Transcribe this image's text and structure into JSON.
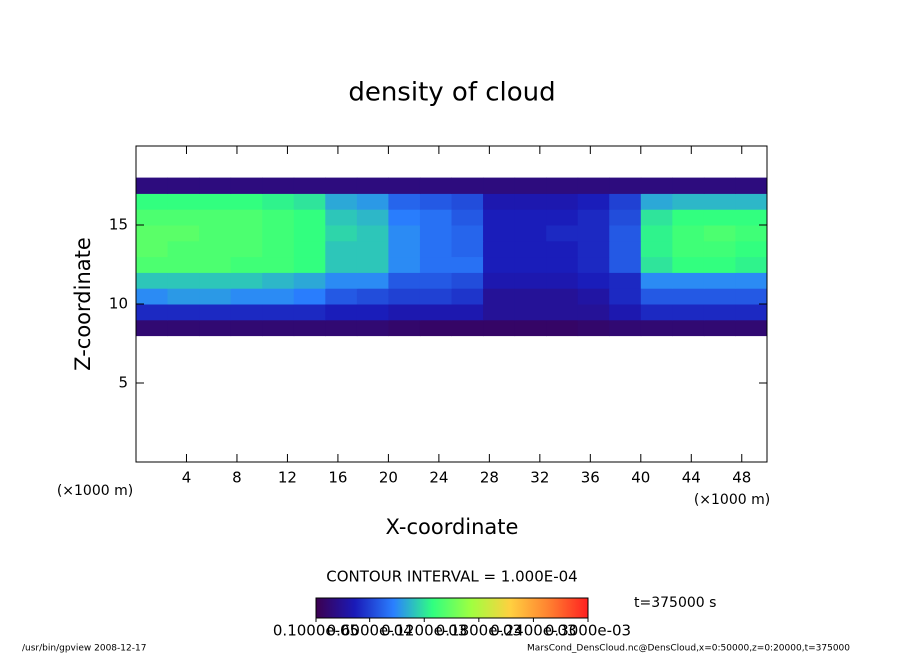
{
  "chart_data": {
    "type": "heatmap",
    "title": "density of cloud",
    "xlabel": "X-coordinate",
    "ylabel": "Z-coordinate",
    "xunit": "(×1000 m)",
    "xlim": [
      0,
      50
    ],
    "ylim": [
      0,
      20
    ],
    "xticks": [
      4,
      8,
      12,
      16,
      20,
      24,
      28,
      32,
      36,
      40,
      44,
      48
    ],
    "yticks": [
      5,
      10,
      15
    ],
    "xbins": [
      0,
      2.5,
      5,
      7.5,
      10,
      12.5,
      15,
      17.5,
      20,
      22.5,
      25,
      27.5,
      30,
      32.5,
      35,
      37.5,
      40,
      42.5,
      45,
      47.5,
      50
    ],
    "zbins": [
      8,
      9,
      10,
      11,
      12,
      13,
      14,
      15,
      16,
      17,
      18
    ],
    "values": [
      [
        1.5e-05,
        1.5e-05,
        1.5e-05,
        1.5e-05,
        1.5e-05,
        1.5e-05,
        1.5e-05,
        1.5e-05,
        1.2e-05,
        1e-05,
        1e-05,
        1e-05,
        1e-05,
        1e-05,
        1.2e-05,
        1.5e-05,
        1.5e-05,
        1.5e-05,
        1.5e-05,
        1.5e-05
      ],
      [
        5e-05,
        5e-05,
        5e-05,
        5e-05,
        5e-05,
        5e-05,
        4.5e-05,
        4.5e-05,
        4e-05,
        4e-05,
        4e-05,
        3e-05,
        3e-05,
        3e-05,
        3e-05,
        4e-05,
        5e-05,
        5e-05,
        5e-05,
        5e-05
      ],
      [
        9e-05,
        9.5e-05,
        9.5e-05,
        9e-05,
        9e-05,
        8.5e-05,
        7e-05,
        6.5e-05,
        6e-05,
        6e-05,
        5.5e-05,
        3e-05,
        3e-05,
        3e-05,
        3.5e-05,
        5e-05,
        7e-05,
        7e-05,
        7e-05,
        7e-05
      ],
      [
        0.00011,
        0.00011,
        0.00011,
        0.00011,
        0.000105,
        0.0001,
        9e-05,
        9e-05,
        7e-05,
        7e-05,
        6.5e-05,
        4e-05,
        4e-05,
        4e-05,
        4.5e-05,
        5e-05,
        9e-05,
        9e-05,
        9e-05,
        9e-05
      ],
      [
        0.00014,
        0.00014,
        0.00014,
        0.000135,
        0.000135,
        0.00013,
        0.00011,
        0.00011,
        9e-05,
        8e-05,
        8e-05,
        4.5e-05,
        4.5e-05,
        4.5e-05,
        5e-05,
        7e-05,
        0.00012,
        0.00013,
        0.00013,
        0.000125
      ],
      [
        0.000145,
        0.00014,
        0.00014,
        0.00014,
        0.000135,
        0.00013,
        0.00011,
        0.00011,
        9e-05,
        8e-05,
        7.5e-05,
        4.5e-05,
        4.5e-05,
        4.5e-05,
        5e-05,
        7e-05,
        0.000125,
        0.000135,
        0.000135,
        0.00013
      ],
      [
        0.000145,
        0.000145,
        0.00014,
        0.00014,
        0.000135,
        0.00013,
        0.000115,
        0.00011,
        9e-05,
        8e-05,
        7.5e-05,
        4.5e-05,
        4.5e-05,
        5e-05,
        5e-05,
        7e-05,
        0.000125,
        0.000135,
        0.00014,
        0.000135
      ],
      [
        0.00014,
        0.00014,
        0.00014,
        0.00014,
        0.000135,
        0.00013,
        0.00011,
        0.000105,
        8.5e-05,
        8e-05,
        7e-05,
        4.5e-05,
        4.5e-05,
        4.5e-05,
        5e-05,
        6.5e-05,
        0.00012,
        0.00013,
        0.00013,
        0.00013
      ],
      [
        0.00013,
        0.00013,
        0.00013,
        0.00013,
        0.000125,
        0.00012,
        0.0001,
        9.5e-05,
        7.5e-05,
        7e-05,
        6.5e-05,
        4e-05,
        4e-05,
        4e-05,
        4.5e-05,
        6e-05,
        0.0001,
        0.000105,
        0.000105,
        0.000105
      ],
      [
        2e-05,
        2e-05,
        2e-05,
        2e-05,
        2e-05,
        2e-05,
        2e-05,
        2e-05,
        2e-05,
        2e-05,
        2e-05,
        2e-05,
        2e-05,
        2e-05,
        2e-05,
        2e-05,
        2e-05,
        2e-05,
        2e-05,
        2e-05
      ]
    ],
    "colormap": [
      "#3c0050",
      "#1a1ab8",
      "#2a80ff",
      "#30ff80",
      "#a0ff40",
      "#ffd040",
      "#ff8030",
      "#ff2020"
    ],
    "contour_interval": "CONTOUR INTERVAL = 1.000E-04",
    "time_label": "t=375000 s",
    "colorbar_ticks": [
      {
        "value": 1e-06,
        "label": "0.1000e-05"
      },
      {
        "value": 6e-05,
        "label": "0.6000e-04"
      },
      {
        "value": 0.00012,
        "label": "0.1200e-03"
      },
      {
        "value": 0.00018,
        "label": "0.1800e-03"
      },
      {
        "value": 0.00024,
        "label": "0.2400e-03"
      },
      {
        "value": 0.0003,
        "label": "0.3000e-03"
      }
    ],
    "footer_left": "/usr/bin/gpview   2008-12-17",
    "footer_right": "MarsCond_DensCloud.nc@DensCloud,x=0:50000,z=0:20000,t=375000"
  }
}
